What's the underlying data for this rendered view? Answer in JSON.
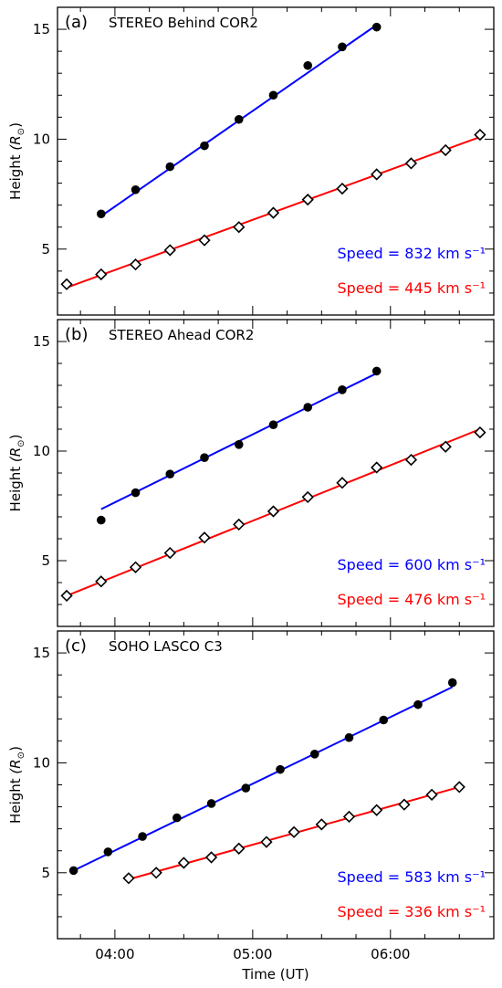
{
  "colors": {
    "blue_series": "#0000ff",
    "red_series": "#ff0000",
    "axis": "#000000"
  },
  "chart_data": [
    {
      "type": "scatter",
      "panel_label": "(a)",
      "title": "STEREO Behind COR2",
      "xlabel": "",
      "ylabel_main": "Height",
      "ylabel_unit": "(R",
      "ylabel_sub": "⊙",
      "ylabel_close": ")",
      "xlim": [
        "03:35",
        "06:45"
      ],
      "ylim": [
        2,
        16
      ],
      "yticks": [
        5,
        10,
        15
      ],
      "xticks": [
        "04:00",
        "05:00",
        "06:00"
      ],
      "show_xticklabels": false,
      "series": [
        {
          "color": "#0000ff",
          "marker": "filled-circle",
          "x": [
            "03:54",
            "04:09",
            "04:24",
            "04:39",
            "04:54",
            "05:09",
            "05:24",
            "05:39",
            "05:54"
          ],
          "y": [
            6.6,
            7.7,
            8.75,
            9.7,
            10.9,
            12.0,
            13.35,
            14.2,
            15.1
          ],
          "fit": {
            "x": [
              "03:54",
              "05:54"
            ],
            "y": [
              6.5,
              15.2
            ]
          },
          "label": "Speed = 832 km s⁻¹"
        },
        {
          "color": "#ff0000",
          "marker": "open-diamond",
          "x": [
            "03:39",
            "03:54",
            "04:09",
            "04:24",
            "04:39",
            "04:54",
            "05:09",
            "05:24",
            "05:39",
            "05:54",
            "06:09",
            "06:24",
            "06:39"
          ],
          "y": [
            3.4,
            3.85,
            4.3,
            4.95,
            5.4,
            6.0,
            6.65,
            7.25,
            7.75,
            8.4,
            8.9,
            9.5,
            10.2
          ],
          "fit": {
            "x": [
              "03:39",
              "06:39"
            ],
            "y": [
              3.25,
              10.1
            ]
          },
          "label": "Speed = 445 km s⁻¹"
        }
      ]
    },
    {
      "type": "scatter",
      "panel_label": "(b)",
      "title": "STEREO Ahead COR2",
      "xlabel": "",
      "ylabel_main": "Height",
      "ylabel_unit": "(R",
      "ylabel_sub": "⊙",
      "ylabel_close": ")",
      "xlim": [
        "03:35",
        "06:45"
      ],
      "ylim": [
        2,
        16
      ],
      "yticks": [
        5,
        10,
        15
      ],
      "xticks": [
        "04:00",
        "05:00",
        "06:00"
      ],
      "show_xticklabels": false,
      "series": [
        {
          "color": "#0000ff",
          "marker": "filled-circle",
          "x": [
            "03:54",
            "04:09",
            "04:24",
            "04:39",
            "04:54",
            "05:09",
            "05:24",
            "05:39",
            "05:54"
          ],
          "y": [
            6.85,
            8.1,
            8.95,
            9.7,
            10.3,
            11.2,
            12.0,
            12.8,
            13.65
          ],
          "fit": {
            "x": [
              "03:54",
              "05:54"
            ],
            "y": [
              7.35,
              13.55
            ]
          },
          "label": "Speed = 600 km s⁻¹"
        },
        {
          "color": "#ff0000",
          "marker": "open-diamond",
          "x": [
            "03:39",
            "03:54",
            "04:09",
            "04:24",
            "04:39",
            "04:54",
            "05:09",
            "05:24",
            "05:39",
            "05:54",
            "06:09",
            "06:24",
            "06:39"
          ],
          "y": [
            3.4,
            4.05,
            4.7,
            5.35,
            6.05,
            6.65,
            7.25,
            7.9,
            8.55,
            9.25,
            9.6,
            10.2,
            10.85
          ],
          "fit": {
            "x": [
              "03:39",
              "06:39"
            ],
            "y": [
              3.4,
              11.0
            ]
          },
          "label": "Speed = 476 km s⁻¹"
        }
      ]
    },
    {
      "type": "scatter",
      "panel_label": "(c)",
      "title": "SOHO LASCO C3",
      "xlabel": "Time (UT)",
      "ylabel_main": "Height",
      "ylabel_unit": "(R",
      "ylabel_sub": "⊙",
      "ylabel_close": ")",
      "xlim": [
        "03:35",
        "06:45"
      ],
      "ylim": [
        2,
        16
      ],
      "yticks": [
        5,
        10,
        15
      ],
      "xticks": [
        "04:00",
        "05:00",
        "06:00"
      ],
      "show_xticklabels": true,
      "series": [
        {
          "color": "#0000ff",
          "marker": "filled-circle",
          "x": [
            "03:42",
            "03:57",
            "04:12",
            "04:27",
            "04:42",
            "04:57",
            "05:12",
            "05:27",
            "05:42",
            "05:57",
            "06:12",
            "06:27"
          ],
          "y": [
            5.1,
            5.95,
            6.65,
            7.5,
            8.15,
            8.85,
            9.7,
            10.4,
            11.15,
            11.95,
            12.65,
            13.65
          ],
          "fit": {
            "x": [
              "03:42",
              "06:27"
            ],
            "y": [
              5.1,
              13.45
            ]
          },
          "label": "Speed = 583 km s⁻¹"
        },
        {
          "color": "#ff0000",
          "marker": "open-diamond",
          "x": [
            "04:06",
            "04:18",
            "04:30",
            "04:42",
            "04:54",
            "05:06",
            "05:18",
            "05:30",
            "05:42",
            "05:54",
            "06:06",
            "06:18",
            "06:30"
          ],
          "y": [
            4.75,
            5.0,
            5.45,
            5.7,
            6.1,
            6.4,
            6.85,
            7.2,
            7.55,
            7.85,
            8.1,
            8.55,
            8.9
          ],
          "fit": {
            "x": [
              "04:06",
              "06:30"
            ],
            "y": [
              4.7,
              8.9
            ]
          },
          "label": "Speed = 336 km s⁻¹"
        }
      ]
    }
  ]
}
